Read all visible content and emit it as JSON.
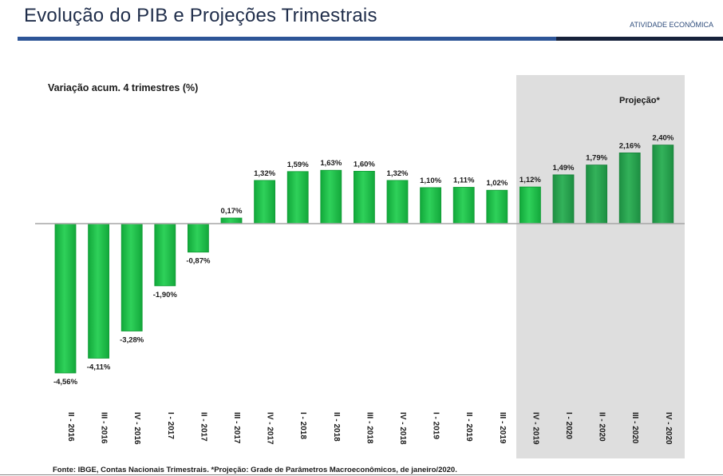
{
  "header": {
    "title": "Evolução do PIB e Projeções Trimestrais",
    "section": "ATIVIDADE ECONÔMICA"
  },
  "footer": {
    "source": "Fonte: IBGE, Contas Nacionais Trimestrais.  *Projeção: Grade de Parâmetros Macroeconômicos, de janeiro/2020."
  },
  "colors": {
    "bar": "#1fbf4a",
    "bar_projection": "#27a24e",
    "projection_bg": "#dedede"
  },
  "chart_data": {
    "type": "bar",
    "title": "Variação acum. 4 trimestres (%)",
    "xlabel": "",
    "ylabel": "",
    "ylim": [
      -5,
      3
    ],
    "projection_label": "Projeção*",
    "projection_start_index": 15,
    "categories": [
      "II - 2016",
      "III - 2016",
      "IV - 2016",
      "I - 2017",
      "II - 2017",
      "III - 2017",
      "IV - 2017",
      "I - 2018",
      "II - 2018",
      "III - 2018",
      "IV - 2018",
      "I - 2019",
      "II - 2019",
      "III - 2019",
      "IV - 2019",
      "I - 2020",
      "II - 2020",
      "III - 2020",
      "IV - 2020"
    ],
    "values": [
      -4.56,
      -4.11,
      -3.28,
      -1.9,
      -0.87,
      0.17,
      1.32,
      1.59,
      1.63,
      1.6,
      1.32,
      1.1,
      1.11,
      1.02,
      1.12,
      1.49,
      1.79,
      2.16,
      2.4
    ],
    "labels": [
      "-4,56%",
      "-4,11%",
      "-3,28%",
      "-1,90%",
      "-0,87%",
      "0,17%",
      "1,32%",
      "1,59%",
      "1,63%",
      "1,60%",
      "1,32%",
      "1,10%",
      "1,11%",
      "1,02%",
      "1,12%",
      "1,49%",
      "1,79%",
      "2,16%",
      "2,40%"
    ]
  }
}
